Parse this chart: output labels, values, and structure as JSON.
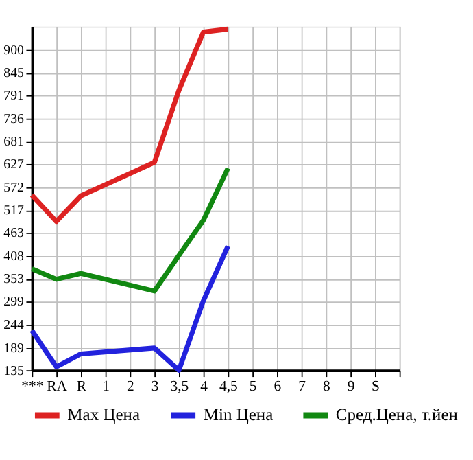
{
  "chart_data": {
    "type": "line",
    "categories": [
      "***",
      "RA",
      "R",
      "1",
      "2",
      "3",
      "3,5",
      "4",
      "4,5",
      "5",
      "6",
      "7",
      "8",
      "9",
      "S",
      null
    ],
    "series": [
      {
        "name": "Max Цена",
        "color": "#dd2222",
        "values": [
          553,
          490,
          551,
          null,
          null,
          631,
          803,
          942,
          949,
          null,
          null,
          null,
          null,
          null,
          null,
          null
        ]
      },
      {
        "name": "Min Цена",
        "color": "#2222dd",
        "values": [
          230,
          143,
          174,
          null,
          null,
          188,
          135,
          301,
          431,
          null,
          null,
          null,
          null,
          null,
          null,
          null
        ]
      },
      {
        "name": "Сред.Цена, т.йен",
        "color": "#118811",
        "values": [
          377,
          352,
          366,
          null,
          null,
          324,
          409,
          493,
          617,
          null,
          null,
          null,
          null,
          null,
          null,
          null
        ]
      }
    ],
    "ylim": [
      135,
      955
    ],
    "yticks": [
      135,
      189,
      244,
      299,
      353,
      408,
      463,
      517,
      572,
      627,
      681,
      736,
      791,
      845,
      900
    ],
    "grid": true,
    "legend": "bottom",
    "marker": "none",
    "line_style": "solid"
  }
}
